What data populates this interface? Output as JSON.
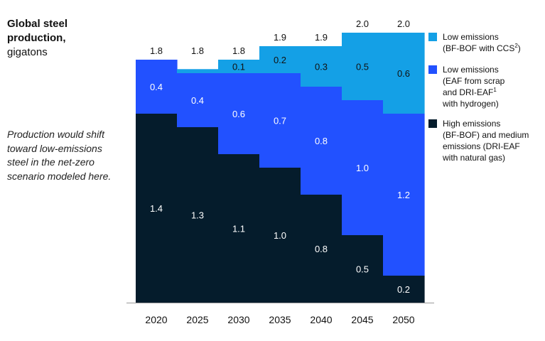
{
  "title": "Global steel production,",
  "subtitle": "gigatons",
  "annotation": "Production would shift toward low-emissions steel in the net-zero scenario modeled here.",
  "colors": {
    "low_ccs": "#14a0e6",
    "low_eaf": "#2251ff",
    "high": "#051c2c"
  },
  "legend": [
    {
      "series": "low_ccs",
      "label_parts": [
        "Low emissions\n(BF-BOF with CCS",
        "2",
        ")"
      ]
    },
    {
      "series": "low_eaf",
      "label_parts": [
        "Low emissions\n(EAF from scrap\nand DRI-EAF",
        "1",
        "\nwith hydrogen)"
      ]
    },
    {
      "series": "high",
      "label_parts": [
        "High emissions\n(BF-BOF) and medium\nemissions (DRI-EAF\nwith natural gas)",
        "",
        ""
      ]
    }
  ],
  "chart_data": {
    "type": "bar",
    "stacked": true,
    "categories": [
      "2020",
      "2025",
      "2030",
      "2035",
      "2040",
      "2045",
      "2050"
    ],
    "series": [
      {
        "key": "high",
        "name": "High emissions (BF-BOF) and medium emissions (DRI-EAF with natural gas)",
        "values": [
          1.4,
          1.3,
          1.1,
          1.0,
          0.8,
          0.5,
          0.2
        ],
        "labels": [
          "1.4",
          "1.3",
          "1.1",
          "1.0",
          "0.8",
          "0.5",
          "0.2"
        ]
      },
      {
        "key": "low_eaf",
        "name": "Low emissions (EAF from scrap and DRI-EAF with hydrogen)",
        "values": [
          0.4,
          0.4,
          0.6,
          0.7,
          0.8,
          1.0,
          1.2
        ],
        "labels": [
          "0.4",
          "0.4",
          "0.6",
          "0.7",
          "0.8",
          "1.0",
          "1.2"
        ]
      },
      {
        "key": "low_ccs",
        "name": "Low emissions (BF-BOF with CCS)",
        "values": [
          0.0,
          0.03,
          0.1,
          0.2,
          0.3,
          0.5,
          0.6
        ],
        "labels": [
          "",
          "",
          "0.1",
          "0.2",
          "0.3",
          "0.5",
          "0.6"
        ]
      }
    ],
    "totals": [
      1.8,
      1.8,
      1.8,
      1.9,
      1.9,
      2.0,
      2.0
    ],
    "total_labels": [
      "1.8",
      "1.8",
      "1.8",
      "1.9",
      "1.9",
      "2.0",
      "2.0"
    ],
    "ylim": [
      0,
      2.2
    ],
    "grid": false,
    "legend_position": "right"
  }
}
